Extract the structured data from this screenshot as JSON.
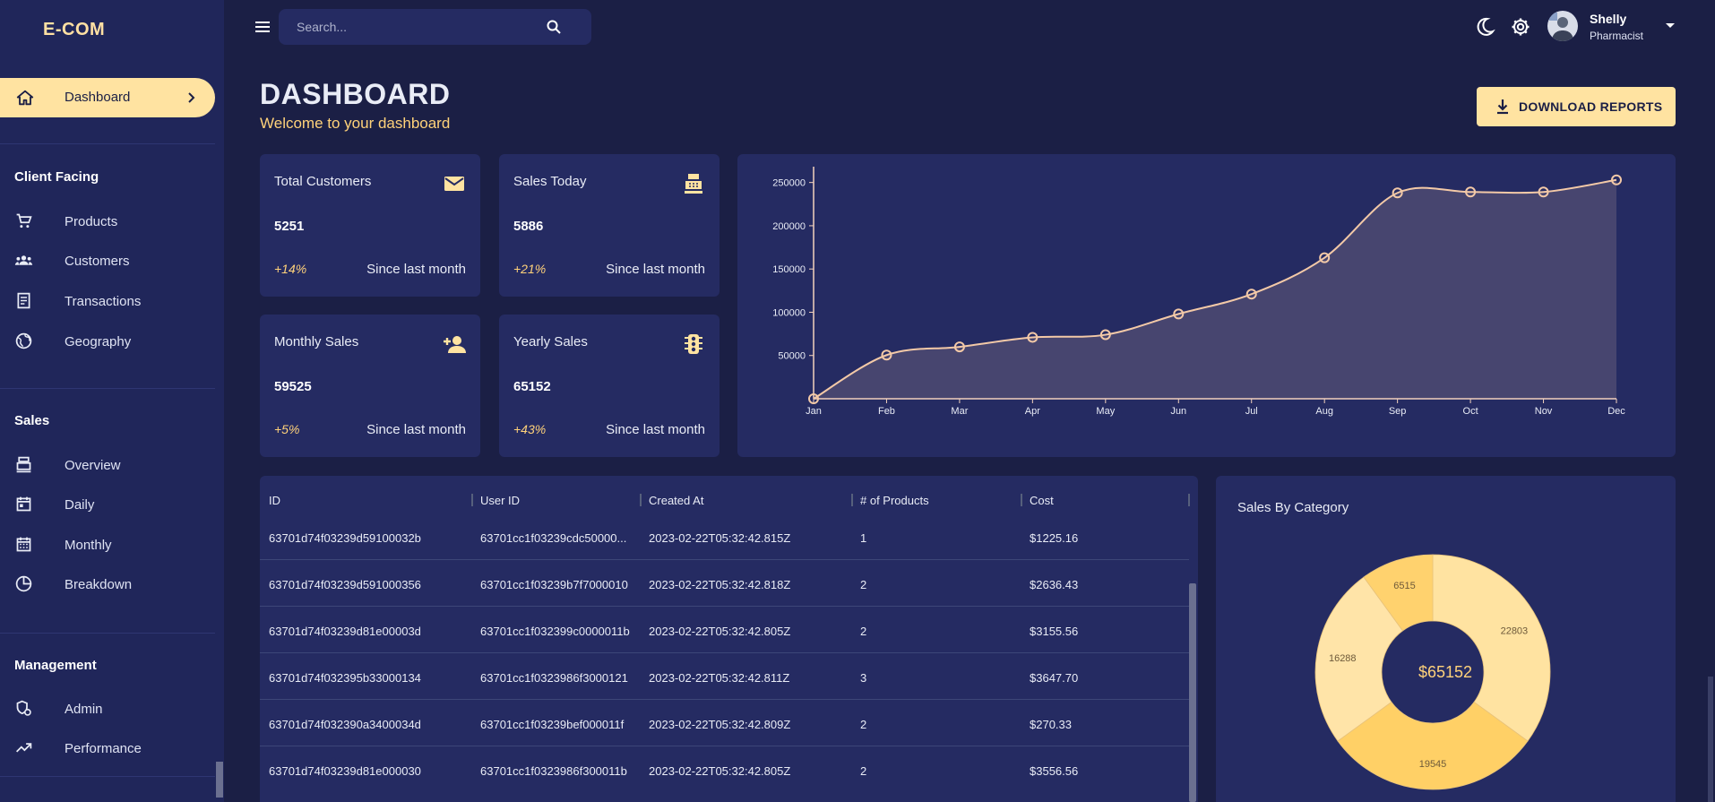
{
  "brand": "E-COM",
  "nav": {
    "active": {
      "label": "Dashboard",
      "icon": "home-icon"
    },
    "sections": [
      {
        "title": "Client Facing",
        "items": [
          {
            "label": "Products",
            "icon": "cart-icon"
          },
          {
            "label": "Customers",
            "icon": "groups-icon"
          },
          {
            "label": "Transactions",
            "icon": "receipt-icon"
          },
          {
            "label": "Geography",
            "icon": "globe-icon"
          }
        ]
      },
      {
        "title": "Sales",
        "items": [
          {
            "label": "Overview",
            "icon": "point-of-sale-icon"
          },
          {
            "label": "Daily",
            "icon": "calendar-today-icon"
          },
          {
            "label": "Monthly",
            "icon": "calendar-month-icon"
          },
          {
            "label": "Breakdown",
            "icon": "pie-chart-icon"
          }
        ]
      },
      {
        "title": "Management",
        "items": [
          {
            "label": "Admin",
            "icon": "admin-icon"
          },
          {
            "label": "Performance",
            "icon": "trending-up-icon"
          }
        ]
      }
    ]
  },
  "search": {
    "placeholder": "Search..."
  },
  "user": {
    "name": "Shelly",
    "role": "Pharmacist"
  },
  "header": {
    "title": "DASHBOARD",
    "subtitle": "Welcome to your dashboard"
  },
  "download_label": "DOWNLOAD REPORTS",
  "stats": [
    {
      "title": "Total Customers",
      "value": "5251",
      "increase": "+14%",
      "since": "Since last month",
      "icon": "email-icon"
    },
    {
      "title": "Sales Today",
      "value": "5886",
      "increase": "+21%",
      "since": "Since last month",
      "icon": "point-of-sale-icon"
    },
    {
      "title": "Monthly Sales",
      "value": "59525",
      "increase": "+5%",
      "since": "Since last month",
      "icon": "person-add-icon"
    },
    {
      "title": "Yearly Sales",
      "value": "65152",
      "increase": "+43%",
      "since": "Since last month",
      "icon": "traffic-icon"
    }
  ],
  "table": {
    "columns": [
      "ID",
      "User ID",
      "Created At",
      "# of Products",
      "Cost"
    ],
    "rows": [
      [
        "63701d74f03239d59100032b",
        "63701cc1f03239cdc50000...",
        "2023-02-22T05:32:42.815Z",
        "1",
        "$1225.16"
      ],
      [
        "63701d74f03239d591000356",
        "63701cc1f03239b7f7000010",
        "2023-02-22T05:32:42.818Z",
        "2",
        "$2636.43"
      ],
      [
        "63701d74f03239d81e00003d",
        "63701cc1f032399c0000011b",
        "2023-02-22T05:32:42.805Z",
        "2",
        "$3155.56"
      ],
      [
        "63701d74f032395b33000134",
        "63701cc1f0323986f3000121",
        "2023-02-22T05:32:42.811Z",
        "3",
        "$3647.70"
      ],
      [
        "63701d74f032390a3400034d",
        "63701cc1f03239bef000011f",
        "2023-02-22T05:32:42.809Z",
        "2",
        "$270.33"
      ],
      [
        "63701d74f03239d81e000030",
        "63701cc1f0323986f300011b",
        "2023-02-22T05:32:42.805Z",
        "2",
        "$3556.56"
      ]
    ]
  },
  "chart_data": [
    {
      "type": "area",
      "title": "",
      "xlabel": "",
      "ylabel": "",
      "categories": [
        "Jan",
        "Feb",
        "Mar",
        "Apr",
        "May",
        "Jun",
        "Jul",
        "Aug",
        "Sep",
        "Oct",
        "Nov",
        "Dec"
      ],
      "values": [
        0,
        50500,
        60000,
        71000,
        74000,
        98000,
        121000,
        163000,
        238000,
        239000,
        239000,
        253000
      ],
      "yticks": [
        50000,
        100000,
        150000,
        200000,
        250000
      ],
      "ylim": [
        0,
        260000
      ],
      "grid": false,
      "colors": {
        "line": "#f3c9a7",
        "fill": "#4d4a72"
      }
    },
    {
      "type": "pie",
      "title": "Sales By Category",
      "center_label": "$65152",
      "slices": [
        {
          "label": "22803",
          "value": 22803,
          "color": "#ffe3a1"
        },
        {
          "label": "19545",
          "value": 19545,
          "color": "#ffd066"
        },
        {
          "label": "16288",
          "value": 16288,
          "color": "#ffe4a8"
        },
        {
          "label": "6515",
          "value": 6515,
          "color": "#ffd26e"
        }
      ]
    }
  ]
}
